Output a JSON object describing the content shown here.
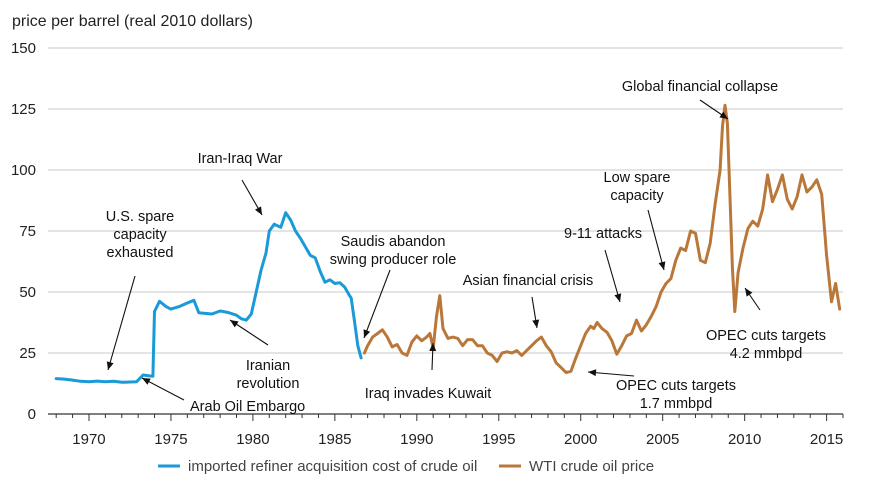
{
  "chart_data": {
    "type": "line",
    "ylabel": "price per barrel (real 2010 dollars)",
    "xlim": [
      1967.5,
      2016.0
    ],
    "ylim": [
      0,
      150
    ],
    "x_ticks": [
      1970,
      1975,
      1980,
      1985,
      1990,
      1995,
      2000,
      2005,
      2010,
      2015
    ],
    "y_ticks": [
      0,
      25,
      50,
      75,
      100,
      125,
      150
    ],
    "grid": "horizontal",
    "legend_position": "bottom",
    "series": [
      {
        "name": "imported refiner acquisition cost of crude oil",
        "color": "#1a9ad6",
        "points": [
          [
            1968.0,
            14.5
          ],
          [
            1968.5,
            14.3
          ],
          [
            1969.0,
            13.9
          ],
          [
            1969.5,
            13.4
          ],
          [
            1970.0,
            13.2
          ],
          [
            1970.5,
            13.5
          ],
          [
            1971.0,
            13.2
          ],
          [
            1971.5,
            13.4
          ],
          [
            1972.0,
            13.0
          ],
          [
            1972.5,
            13.1
          ],
          [
            1972.9,
            13.2
          ],
          [
            1973.3,
            16.0
          ],
          [
            1973.7,
            15.6
          ],
          [
            1973.9,
            15.5
          ],
          [
            1974.0,
            42.0
          ],
          [
            1974.3,
            46.2
          ],
          [
            1974.7,
            44.0
          ],
          [
            1975.0,
            43.0
          ],
          [
            1975.5,
            44.0
          ],
          [
            1976.0,
            45.5
          ],
          [
            1976.4,
            46.6
          ],
          [
            1976.7,
            41.5
          ],
          [
            1977.0,
            41.3
          ],
          [
            1977.5,
            41.0
          ],
          [
            1978.0,
            42.2
          ],
          [
            1978.5,
            41.6
          ],
          [
            1979.0,
            40.5
          ],
          [
            1979.3,
            39.0
          ],
          [
            1979.6,
            38.5
          ],
          [
            1979.9,
            41.0
          ],
          [
            1980.2,
            50.0
          ],
          [
            1980.5,
            59.0
          ],
          [
            1980.8,
            66.0
          ],
          [
            1981.0,
            75.0
          ],
          [
            1981.3,
            77.8
          ],
          [
            1981.7,
            76.5
          ],
          [
            1982.0,
            82.5
          ],
          [
            1982.3,
            79.5
          ],
          [
            1982.6,
            75.0
          ],
          [
            1982.9,
            72.0
          ],
          [
            1983.2,
            68.5
          ],
          [
            1983.5,
            65.0
          ],
          [
            1983.8,
            64.0
          ],
          [
            1984.1,
            58.5
          ],
          [
            1984.4,
            54.0
          ],
          [
            1984.7,
            55.0
          ],
          [
            1985.0,
            53.5
          ],
          [
            1985.3,
            53.8
          ],
          [
            1985.6,
            52.0
          ],
          [
            1985.9,
            48.5
          ],
          [
            1986.0,
            47.5
          ],
          [
            1986.2,
            38.0
          ],
          [
            1986.4,
            28.0
          ],
          [
            1986.6,
            23.0
          ]
        ]
      },
      {
        "name": "WTI crude oil price",
        "color": "#b9783a",
        "points": [
          [
            1986.8,
            25.0
          ],
          [
            1987.0,
            28.0
          ],
          [
            1987.3,
            31.5
          ],
          [
            1987.6,
            33.0
          ],
          [
            1987.9,
            34.5
          ],
          [
            1988.2,
            31.5
          ],
          [
            1988.5,
            27.5
          ],
          [
            1988.8,
            28.5
          ],
          [
            1989.1,
            25.0
          ],
          [
            1989.4,
            24.0
          ],
          [
            1989.7,
            29.5
          ],
          [
            1990.0,
            32.0
          ],
          [
            1990.3,
            30.0
          ],
          [
            1990.6,
            31.5
          ],
          [
            1990.8,
            33.0
          ],
          [
            1991.0,
            27.0
          ],
          [
            1991.2,
            40.0
          ],
          [
            1991.4,
            48.5
          ],
          [
            1991.6,
            35.0
          ],
          [
            1991.9,
            31.0
          ],
          [
            1992.2,
            31.5
          ],
          [
            1992.5,
            31.0
          ],
          [
            1992.8,
            28.0
          ],
          [
            1993.1,
            30.5
          ],
          [
            1993.4,
            30.5
          ],
          [
            1993.7,
            28.0
          ],
          [
            1994.0,
            28.0
          ],
          [
            1994.3,
            25.0
          ],
          [
            1994.6,
            24.0
          ],
          [
            1994.9,
            21.5
          ],
          [
            1995.2,
            25.0
          ],
          [
            1995.5,
            25.5
          ],
          [
            1995.8,
            25.0
          ],
          [
            1996.1,
            26.0
          ],
          [
            1996.4,
            24.0
          ],
          [
            1996.7,
            26.0
          ],
          [
            1997.0,
            28.0
          ],
          [
            1997.3,
            30.0
          ],
          [
            1997.6,
            31.5
          ],
          [
            1997.9,
            28.0
          ],
          [
            1998.2,
            25.5
          ],
          [
            1998.5,
            21.0
          ],
          [
            1998.8,
            19.0
          ],
          [
            1999.1,
            17.0
          ],
          [
            1999.4,
            17.5
          ],
          [
            1999.7,
            23.0
          ],
          [
            2000.0,
            28.0
          ],
          [
            2000.3,
            33.0
          ],
          [
            2000.6,
            36.0
          ],
          [
            2000.8,
            35.0
          ],
          [
            2001.0,
            37.5
          ],
          [
            2001.3,
            35.0
          ],
          [
            2001.6,
            33.5
          ],
          [
            2001.9,
            30.0
          ],
          [
            2002.2,
            24.5
          ],
          [
            2002.5,
            28.0
          ],
          [
            2002.8,
            32.0
          ],
          [
            2003.1,
            33.0
          ],
          [
            2003.4,
            38.5
          ],
          [
            2003.7,
            34.0
          ],
          [
            2004.0,
            36.5
          ],
          [
            2004.3,
            40.0
          ],
          [
            2004.6,
            44.0
          ],
          [
            2004.9,
            50.0
          ],
          [
            2005.2,
            53.5
          ],
          [
            2005.5,
            55.5
          ],
          [
            2005.8,
            63.0
          ],
          [
            2006.1,
            68.0
          ],
          [
            2006.4,
            67.0
          ],
          [
            2006.7,
            75.0
          ],
          [
            2007.0,
            74.0
          ],
          [
            2007.3,
            63.0
          ],
          [
            2007.6,
            62.0
          ],
          [
            2007.9,
            70.0
          ],
          [
            2008.2,
            86.0
          ],
          [
            2008.5,
            100.0
          ],
          [
            2008.65,
            118.0
          ],
          [
            2008.8,
            126.5
          ],
          [
            2008.95,
            119.0
          ],
          [
            2009.1,
            90.0
          ],
          [
            2009.25,
            60.0
          ],
          [
            2009.4,
            42.0
          ],
          [
            2009.6,
            58.0
          ],
          [
            2009.9,
            68.0
          ],
          [
            2010.2,
            76.0
          ],
          [
            2010.5,
            79.0
          ],
          [
            2010.8,
            77.0
          ],
          [
            2011.1,
            84.0
          ],
          [
            2011.4,
            98.0
          ],
          [
            2011.7,
            87.0
          ],
          [
            2012.0,
            92.0
          ],
          [
            2012.3,
            98.0
          ],
          [
            2012.6,
            88.0
          ],
          [
            2012.9,
            84.0
          ],
          [
            2013.2,
            89.0
          ],
          [
            2013.5,
            98.0
          ],
          [
            2013.8,
            91.0
          ],
          [
            2014.1,
            93.0
          ],
          [
            2014.4,
            96.0
          ],
          [
            2014.7,
            90.0
          ],
          [
            2015.0,
            65.0
          ],
          [
            2015.3,
            46.0
          ],
          [
            2015.55,
            53.5
          ],
          [
            2015.8,
            43.0
          ]
        ]
      }
    ],
    "annotations": [
      {
        "lines": [
          "U.S. spare",
          "capacity",
          "exhausted"
        ]
      },
      {
        "lines": [
          "Arab Oil Embargo"
        ]
      },
      {
        "lines": [
          "Iran-Iraq War"
        ]
      },
      {
        "lines": [
          "Iranian",
          "revolution"
        ]
      },
      {
        "lines": [
          "Saudis abandon",
          "swing producer role"
        ]
      },
      {
        "lines": [
          "Iraq invades Kuwait"
        ]
      },
      {
        "lines": [
          "Asian financial crisis"
        ]
      },
      {
        "lines": [
          "9-11 attacks"
        ]
      },
      {
        "lines": [
          "Low spare",
          "capacity"
        ]
      },
      {
        "lines": [
          "Global financial collapse"
        ]
      },
      {
        "lines": [
          "OPEC cuts targets",
          "1.7 mmbpd"
        ]
      },
      {
        "lines": [
          "OPEC cuts targets",
          "4.2 mmbpd"
        ]
      }
    ]
  }
}
